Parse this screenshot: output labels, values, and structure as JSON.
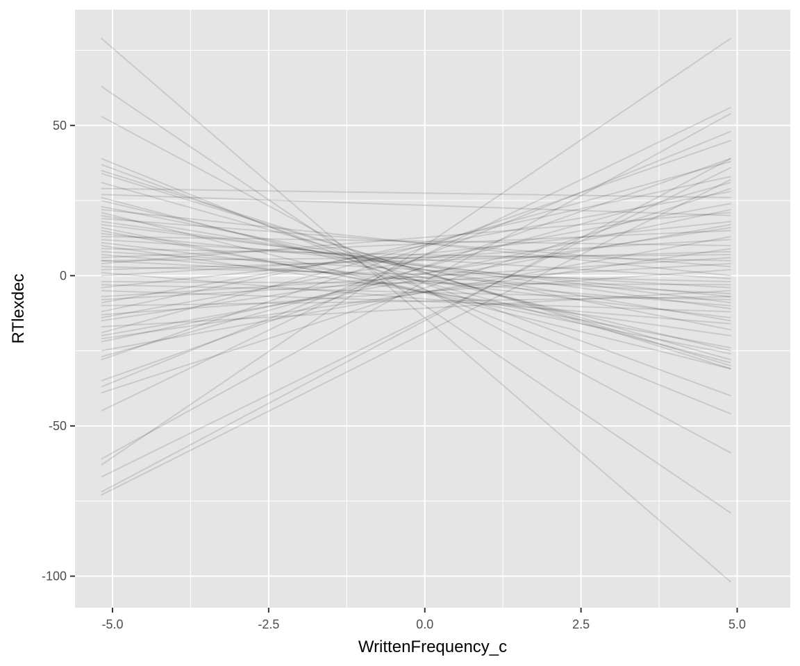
{
  "chart_data": {
    "type": "line",
    "xlabel": "WrittenFrequency_c",
    "ylabel": "RTlexdec",
    "xlim": [
      -5.6,
      5.85
    ],
    "ylim": [
      -110.5,
      88.5
    ],
    "x_ticks": [
      -5.0,
      -2.5,
      0.0,
      2.5,
      5.0
    ],
    "x_tick_labels": [
      "-5.0",
      "-2.5",
      "0.0",
      "2.5",
      "5.0"
    ],
    "y_ticks": [
      -100,
      -50,
      0,
      50
    ],
    "y_tick_labels": [
      "-100",
      "-50",
      "0",
      "50"
    ],
    "x_minor_ticks": [
      -3.75,
      -1.25,
      1.25,
      3.75
    ],
    "y_minor_ticks": [
      -75,
      -25,
      25,
      75
    ],
    "grid": true,
    "legend": "none",
    "line_color": "#000000",
    "line_opacity": 0.12,
    "panel_background": "#e5e5e5",
    "grid_color": "#ffffff",
    "x_range": [
      -5.18,
      4.9
    ],
    "series_description": "each line is a fitted regression line from x=-5.18 to x=4.9",
    "lines": [
      {
        "y_start": 79,
        "y_end": -102
      },
      {
        "y_start": 63,
        "y_end": -79
      },
      {
        "y_start": 53,
        "y_end": -59
      },
      {
        "y_start": 39,
        "y_end": -46
      },
      {
        "y_start": 37,
        "y_end": -40
      },
      {
        "y_start": 35,
        "y_end": -31
      },
      {
        "y_start": 34,
        "y_end": -30
      },
      {
        "y_start": 31,
        "y_end": -28
      },
      {
        "y_start": 29,
        "y_end": 26
      },
      {
        "y_start": 27,
        "y_end": 20
      },
      {
        "y_start": 25,
        "y_end": -25
      },
      {
        "y_start": 23,
        "y_end": -18
      },
      {
        "y_start": 21,
        "y_end": -31
      },
      {
        "y_start": 20,
        "y_end": -15
      },
      {
        "y_start": 19,
        "y_end": 3
      },
      {
        "y_start": 17,
        "y_end": -9
      },
      {
        "y_start": 15,
        "y_end": -24
      },
      {
        "y_start": 14,
        "y_end": -7
      },
      {
        "y_start": 13,
        "y_end": 10
      },
      {
        "y_start": 11,
        "y_end": -14
      },
      {
        "y_start": 10,
        "y_end": -20
      },
      {
        "y_start": 9,
        "y_end": 5
      },
      {
        "y_start": 8,
        "y_end": -4
      },
      {
        "y_start": 7,
        "y_end": -10
      },
      {
        "y_start": 6,
        "y_end": 15
      },
      {
        "y_start": 5,
        "y_end": -6
      },
      {
        "y_start": 4,
        "y_end": 21
      },
      {
        "y_start": 3,
        "y_end": -2
      },
      {
        "y_start": 2,
        "y_end": 8
      },
      {
        "y_start": 1,
        "y_end": -16
      },
      {
        "y_start": 0,
        "y_end": 12
      },
      {
        "y_start": -2,
        "y_end": -3
      },
      {
        "y_start": -4,
        "y_end": 18
      },
      {
        "y_start": -5,
        "y_end": -12
      },
      {
        "y_start": -7,
        "y_end": 6
      },
      {
        "y_start": -9,
        "y_end": 28
      },
      {
        "y_start": -10,
        "y_end": -7
      },
      {
        "y_start": -12,
        "y_end": 33
      },
      {
        "y_start": -13,
        "y_end": 2
      },
      {
        "y_start": -15,
        "y_end": 16
      },
      {
        "y_start": -17,
        "y_end": -5
      },
      {
        "y_start": -19,
        "y_end": 38
      },
      {
        "y_start": -21,
        "y_end": 9
      },
      {
        "y_start": -22,
        "y_end": 22
      },
      {
        "y_start": -25,
        "y_end": 13
      },
      {
        "y_start": -27,
        "y_end": 31
      },
      {
        "y_start": -28,
        "y_end": 45
      },
      {
        "y_start": -35,
        "y_end": 39
      },
      {
        "y_start": -37,
        "y_end": 48
      },
      {
        "y_start": -39,
        "y_end": 29
      },
      {
        "y_start": -45,
        "y_end": 56
      },
      {
        "y_start": -61,
        "y_end": 54
      },
      {
        "y_start": -63,
        "y_end": 79
      },
      {
        "y_start": -67,
        "y_end": 36
      },
      {
        "y_start": -72,
        "y_end": 39
      },
      {
        "y_start": -73,
        "y_end": 32
      },
      {
        "y_start": 26,
        "y_end": -29
      },
      {
        "y_start": 12,
        "y_end": -1
      },
      {
        "y_start": -3,
        "y_end": -8
      },
      {
        "y_start": 22,
        "y_end": 0
      },
      {
        "y_start": -14,
        "y_end": 24
      },
      {
        "y_start": 18,
        "y_end": -11
      },
      {
        "y_start": -8,
        "y_end": 4
      },
      {
        "y_start": 16,
        "y_end": -26
      },
      {
        "y_start": 5,
        "y_end": 7
      },
      {
        "y_start": -20,
        "y_end": 17
      }
    ]
  }
}
